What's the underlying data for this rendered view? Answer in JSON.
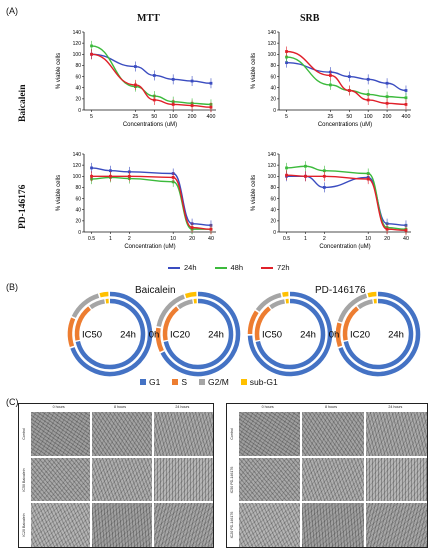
{
  "panels": {
    "a": "(A)",
    "b": "(B)",
    "c": "(C)"
  },
  "col_titles": [
    "MTT",
    "SRB"
  ],
  "row_titles": [
    "Baicalein",
    "PD-146176"
  ],
  "legend_a": [
    {
      "label": "24h",
      "color": "#3a4cc0"
    },
    {
      "label": "48h",
      "color": "#3cba3c"
    },
    {
      "label": "72h",
      "color": "#e0202a"
    }
  ],
  "chart_data": [
    {
      "type": "line",
      "title": "MTT",
      "xlabel": "Concentrations (uM)",
      "ylabel": "% viable cells",
      "x_scale": "log",
      "x": [
        5,
        25,
        50,
        100,
        200,
        400
      ],
      "xticks": [
        "5",
        "25",
        "50",
        "100",
        "200",
        "400"
      ],
      "yticks": [
        "0",
        "20",
        "40",
        "60",
        "80",
        "100",
        "120",
        "140"
      ],
      "ylim": [
        0,
        140
      ],
      "series": [
        {
          "name": "24h",
          "values": [
            100,
            78,
            62,
            55,
            52,
            48
          ]
        },
        {
          "name": "48h",
          "values": [
            115,
            42,
            25,
            15,
            12,
            10
          ]
        },
        {
          "name": "72h",
          "values": [
            100,
            45,
            18,
            10,
            8,
            5
          ]
        }
      ]
    },
    {
      "type": "line",
      "title": "SRB",
      "xlabel": "Concentrations (uM)",
      "ylabel": "% viable cells",
      "x_scale": "log",
      "x": [
        5,
        25,
        50,
        100,
        200,
        400
      ],
      "xticks": [
        "5",
        "25",
        "50",
        "100",
        "200",
        "400"
      ],
      "yticks": [
        "0",
        "20",
        "40",
        "60",
        "80",
        "100",
        "120",
        "140"
      ],
      "ylim": [
        0,
        140
      ],
      "series": [
        {
          "name": "24h",
          "values": [
            85,
            68,
            60,
            55,
            48,
            35
          ]
        },
        {
          "name": "48h",
          "values": [
            95,
            45,
            35,
            28,
            24,
            22
          ]
        },
        {
          "name": "72h",
          "values": [
            105,
            62,
            35,
            18,
            12,
            10
          ]
        }
      ]
    },
    {
      "type": "line",
      "title": "",
      "xlabel": "Concentration (uM)",
      "ylabel": "% viable cells",
      "x_scale": "log",
      "x": [
        0.5,
        1,
        2,
        10,
        20,
        40
      ],
      "xticks": [
        "0.5",
        "1",
        "2",
        "10",
        "20",
        "40"
      ],
      "yticks": [
        "0",
        "20",
        "40",
        "60",
        "80",
        "100",
        "120",
        "140"
      ],
      "ylim": [
        0,
        140
      ],
      "series": [
        {
          "name": "24h",
          "values": [
            115,
            110,
            108,
            105,
            15,
            12
          ]
        },
        {
          "name": "48h",
          "values": [
            95,
            98,
            96,
            90,
            5,
            5
          ]
        },
        {
          "name": "72h",
          "values": [
            100,
            100,
            100,
            98,
            8,
            5
          ]
        }
      ]
    },
    {
      "type": "line",
      "title": "",
      "xlabel": "Concentration (uM)",
      "ylabel": "% viable cells",
      "x_scale": "log",
      "x": [
        0.5,
        1,
        2,
        10,
        20,
        40
      ],
      "xticks": [
        "0.5",
        "1",
        "2",
        "10",
        "20",
        "40"
      ],
      "yticks": [
        "0",
        "20",
        "40",
        "60",
        "80",
        "100",
        "120",
        "140"
      ],
      "ylim": [
        0,
        140
      ],
      "series": [
        {
          "name": "24h",
          "values": [
            100,
            100,
            80,
            98,
            15,
            12
          ]
        },
        {
          "name": "48h",
          "values": [
            115,
            118,
            110,
            105,
            8,
            5
          ]
        },
        {
          "name": "72h",
          "values": [
            102,
            100,
            100,
            95,
            5,
            3
          ]
        }
      ]
    }
  ],
  "panel_b": {
    "groups": [
      {
        "title": "Baicalein",
        "rings": [
          {
            "label": "IC50",
            "side": "24h"
          },
          {
            "label": "IC20",
            "side": "24h"
          }
        ],
        "middle": "0h"
      },
      {
        "title": "PD-146176",
        "rings": [
          {
            "label": "IC50",
            "side": "24h"
          },
          {
            "label": "IC20",
            "side": "24h"
          }
        ],
        "middle": "0h"
      }
    ],
    "legend": [
      {
        "label": "G1",
        "color": "#4472c4"
      },
      {
        "label": "S",
        "color": "#ed7d31"
      },
      {
        "label": "G2/M",
        "color": "#a5a5a5"
      },
      {
        "label": "sub-G1",
        "color": "#ffc000"
      }
    ],
    "ring_fractions": [
      [
        {
          "outer": [
            0.7,
            0.12,
            0.14,
            0.04
          ],
          "inner": [
            0.72,
            0.18,
            0.08,
            0.02
          ]
        },
        {
          "outer": [
            0.68,
            0.1,
            0.17,
            0.05
          ],
          "inner": [
            0.72,
            0.18,
            0.08,
            0.02
          ]
        }
      ],
      [
        {
          "outer": [
            0.75,
            0.1,
            0.12,
            0.03
          ],
          "inner": [
            0.72,
            0.18,
            0.08,
            0.02
          ]
        },
        {
          "outer": [
            0.7,
            0.1,
            0.16,
            0.04
          ],
          "inner": [
            0.72,
            0.18,
            0.08,
            0.02
          ]
        }
      ]
    ]
  },
  "panel_c": {
    "left": {
      "cols": [
        "0 hours",
        "8 hours",
        "24 hours"
      ],
      "rows": [
        "Control",
        "IC50 Baicalein",
        "IC20 Baicalein"
      ]
    },
    "right": {
      "cols": [
        "0 hours",
        "8 hours",
        "24 hours"
      ],
      "rows": [
        "Control",
        "IC50 PD-146176",
        "IC20 PD-146176"
      ]
    }
  }
}
